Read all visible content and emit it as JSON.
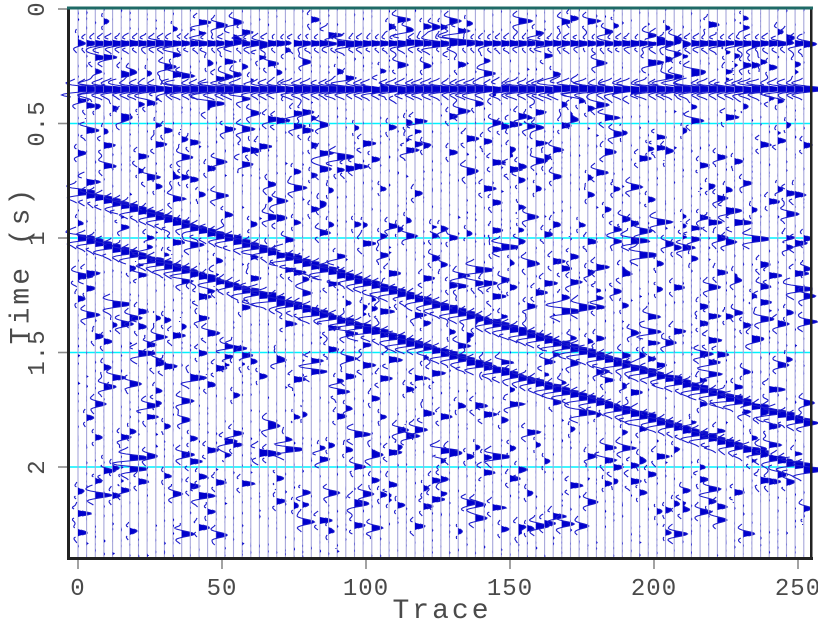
{
  "chart_data": {
    "type": "seismic-wiggle",
    "xlabel": "Trace",
    "ylabel": "Time (s)",
    "x_ticks": [
      0,
      50,
      100,
      150,
      200,
      250
    ],
    "x_tick_labels": [
      "0",
      "50",
      "100",
      "150",
      "200",
      "250"
    ],
    "y_ticks": [
      0,
      0.5,
      1,
      1.5,
      2
    ],
    "y_tick_labels": [
      "0",
      "0.5",
      "1",
      "1.5",
      "2"
    ],
    "xlim": [
      -3,
      254
    ],
    "tlim": [
      0,
      2.4
    ],
    "grid": true,
    "gridlines_time_s": [
      0.5,
      1.0,
      1.5,
      2.0
    ],
    "n_traces": 85,
    "trace_step": 3,
    "first_trace": 0,
    "events": [
      {
        "kind": "flat",
        "t0": 0.15,
        "amp": 1.1
      },
      {
        "kind": "flat",
        "t0": 0.35,
        "amp": 2.0
      },
      {
        "kind": "dip",
        "t0": 0.8,
        "slope_s_per_trace": 0.004,
        "amp": 1.6
      },
      {
        "kind": "dip",
        "t0": 1.0,
        "slope_s_per_trace": 0.004,
        "amp": 1.6
      }
    ],
    "noise": {
      "spikes_per_trace": 10,
      "spike_amp_min": 0.35,
      "spike_amp_max": 1.15,
      "spike_t_min": 0.03,
      "spike_t_max": 2.3,
      "micro_wiggles_per_trace": 90,
      "micro_amp": 0.16,
      "seed": 1234
    },
    "colors": {
      "trace_line": "#1c1ccc",
      "trace_fill": "#0000cd",
      "baseline": "#a6a6da",
      "grid": "#00f2ff",
      "border": "#222222",
      "top_border": "#1f6a66",
      "tick": "#8a8a8a",
      "text": "#4a4a4a"
    }
  }
}
